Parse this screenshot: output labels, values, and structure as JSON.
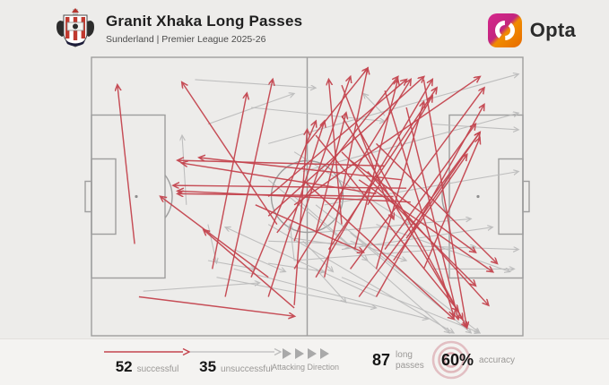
{
  "header": {
    "title": "Granit Xhaka Long Passes",
    "subtitle": "Sunderland | Premier League 2025-26",
    "club_crest": "Sunderland AFC",
    "brand": "Opta"
  },
  "legend": {
    "successful": {
      "count": "52",
      "label": "successful"
    },
    "unsuccessful": {
      "count": "35",
      "label": "unsuccessful"
    },
    "attacking_direction_label": "Attacking Direction",
    "total": {
      "count": "87",
      "label": "long passes"
    },
    "accuracy": {
      "value": "60%",
      "label": "accuracy"
    }
  },
  "colors": {
    "successful": "#c4454f",
    "unsuccessful": "#bcbcbc",
    "pitch_line": "#9e9e9e",
    "background": "#edecea",
    "stamp": "#dcaeb3"
  },
  "chart_data": {
    "type": "scatter",
    "subtype": "football-pass-map-arrows",
    "title": "Granit Xhaka Long Passes",
    "subtitle": "Sunderland | Premier League 2025-26",
    "attacking_direction": "left-to-right",
    "totals": {
      "successful": 52,
      "unsuccessful": 35,
      "total": 87,
      "accuracy_pct": 60
    },
    "coords_note": "each pass = [x1,y1,x2,y2] in % of pitch; x:0 own goal-line to 100 opposition goal-line, y:0 top touchline to 100 bottom touchline; arrowhead at (x2,y2)",
    "passes": {
      "successful": [
        [
          43,
          63,
          71,
          7
        ],
        [
          47,
          76,
          74,
          8
        ],
        [
          41,
          57,
          77,
          7
        ],
        [
          52,
          79,
          79,
          8
        ],
        [
          55,
          69,
          80,
          11
        ],
        [
          47,
          53,
          90,
          7
        ],
        [
          60,
          76,
          91,
          11
        ],
        [
          66,
          86,
          91,
          17
        ],
        [
          68,
          69,
          89,
          24
        ],
        [
          62,
          86,
          90,
          27
        ],
        [
          70,
          73,
          87,
          35
        ],
        [
          64,
          53,
          79,
          14
        ],
        [
          73,
          65,
          90,
          27
        ],
        [
          77,
          76,
          90,
          29
        ],
        [
          58,
          60,
          55,
          8
        ],
        [
          47,
          66,
          60,
          7
        ],
        [
          54,
          79,
          64,
          4
        ],
        [
          61,
          69,
          71,
          8
        ],
        [
          41,
          50,
          73,
          8
        ],
        [
          31,
          86,
          42,
          8
        ],
        [
          28,
          76,
          36,
          13
        ],
        [
          41,
          86,
          54,
          23
        ],
        [
          37,
          79,
          52,
          23
        ],
        [
          47,
          89,
          50,
          26
        ],
        [
          66,
          76,
          77,
          16
        ],
        [
          52,
          63,
          59,
          20
        ],
        [
          10,
          67,
          6,
          10
        ],
        [
          43,
          60,
          21,
          9
        ],
        [
          68,
          39,
          20,
          37
        ],
        [
          72,
          44,
          25,
          36
        ],
        [
          66,
          49,
          21,
          38
        ],
        [
          73,
          47,
          19,
          46
        ],
        [
          74,
          52,
          20,
          48
        ],
        [
          70,
          50,
          20,
          49
        ],
        [
          41,
          79,
          16,
          50
        ],
        [
          47,
          90,
          26,
          62
        ],
        [
          60,
          37,
          89,
          70
        ],
        [
          66,
          31,
          94,
          74
        ],
        [
          62,
          44,
          93,
          77
        ],
        [
          58,
          34,
          89,
          82
        ],
        [
          64,
          41,
          92,
          89
        ],
        [
          52,
          28,
          85,
          91
        ],
        [
          58,
          21,
          86,
          94
        ],
        [
          62,
          26,
          87,
          97
        ],
        [
          49,
          44,
          84,
          94
        ],
        [
          68,
          12,
          84,
          93
        ],
        [
          73,
          18,
          85,
          94
        ],
        [
          77,
          8,
          87,
          97
        ],
        [
          11,
          86,
          47,
          93
        ],
        [
          50,
          31,
          64,
          4
        ],
        [
          38,
          53,
          63,
          70
        ],
        [
          58,
          10,
          70,
          58
        ]
      ],
      "unsuccessful": [
        [
          41,
          31,
          99,
          6
        ],
        [
          49,
          41,
          99,
          20
        ],
        [
          54,
          53,
          99,
          41
        ],
        [
          24,
          8,
          52,
          11
        ],
        [
          68,
          21,
          63,
          13
        ],
        [
          22,
          53,
          21,
          28
        ],
        [
          52,
          63,
          88,
          58
        ],
        [
          58,
          69,
          93,
          61
        ],
        [
          47,
          73,
          89,
          68
        ],
        [
          41,
          66,
          99,
          69
        ],
        [
          66,
          60,
          97,
          77
        ],
        [
          33,
          76,
          78,
          94
        ],
        [
          41,
          60,
          84,
          99
        ],
        [
          52,
          53,
          90,
          99
        ],
        [
          60,
          63,
          88,
          99
        ],
        [
          47,
          50,
          83,
          99
        ],
        [
          33,
          69,
          45,
          77
        ],
        [
          41,
          74,
          54,
          77
        ],
        [
          47,
          65,
          60,
          68
        ],
        [
          60,
          66,
          73,
          73
        ],
        [
          27,
          73,
          38,
          76
        ],
        [
          27,
          60,
          29,
          74
        ],
        [
          49,
          66,
          56,
          77
        ],
        [
          52,
          76,
          59,
          88
        ],
        [
          47,
          73,
          46,
          60
        ],
        [
          12,
          84,
          39,
          81
        ],
        [
          66,
          86,
          31,
          61
        ],
        [
          79,
          24,
          99,
          26
        ],
        [
          37,
          18,
          68,
          23
        ],
        [
          29,
          79,
          66,
          90
        ],
        [
          58,
          79,
          90,
          99
        ],
        [
          47,
          34,
          74,
          60
        ],
        [
          41,
          44,
          64,
          73
        ],
        [
          27,
          24,
          47,
          13
        ],
        [
          79,
          76,
          98,
          76
        ]
      ]
    }
  }
}
